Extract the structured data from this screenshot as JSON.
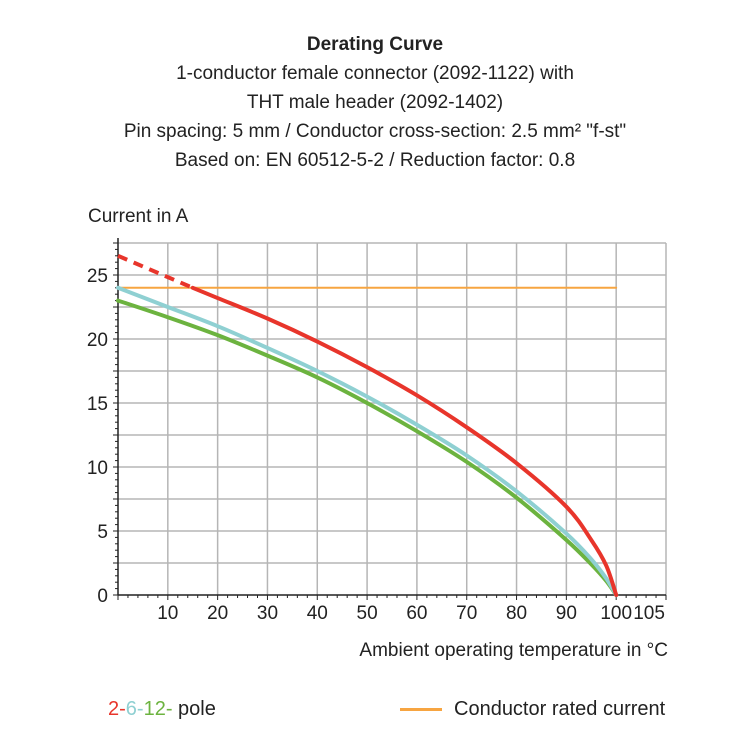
{
  "chart_data": {
    "type": "line",
    "title": "Derating Curve",
    "subtitle": [
      "1-conductor female connector (2092-1122) with",
      "THT male header (2092-1402)",
      "Pin spacing: 5 mm / Conductor cross-section: 2.5 mm² \"f-st\"",
      "Based on: EN 60512-5-2 / Reduction factor: 0.8"
    ],
    "ylabel": "Current in A",
    "xlabel": "Ambient operating temperature in °C",
    "xlim": [
      0,
      110
    ],
    "ylim": [
      0,
      27.5
    ],
    "xticks": [
      10,
      20,
      30,
      40,
      50,
      60,
      70,
      80,
      90,
      100,
      105
    ],
    "yticks": [
      0,
      5,
      10,
      15,
      20,
      25
    ],
    "grid": true,
    "series": [
      {
        "key": "2-pole",
        "color": "#e8352b",
        "dashed_segment": {
          "x": [
            0,
            15
          ],
          "y": [
            26.5,
            24.0
          ]
        },
        "x": [
          15,
          20,
          30,
          40,
          50,
          60,
          70,
          80,
          90,
          95,
          98,
          100
        ],
        "y": [
          24.0,
          23.2,
          21.6,
          19.8,
          17.8,
          15.6,
          13.1,
          10.3,
          6.9,
          4.3,
          2.3,
          0
        ]
      },
      {
        "key": "6-pole",
        "color": "#8fd0d2",
        "x": [
          0,
          10,
          20,
          30,
          40,
          50,
          60,
          70,
          80,
          90,
          95,
          98,
          100
        ],
        "y": [
          24.0,
          22.5,
          21.0,
          19.3,
          17.5,
          15.5,
          13.3,
          10.9,
          8.1,
          4.8,
          2.8,
          1.3,
          0
        ]
      },
      {
        "key": "12-pole",
        "color": "#6cb33f",
        "x": [
          0,
          10,
          20,
          30,
          40,
          50,
          60,
          70,
          80,
          90,
          95,
          98,
          100
        ],
        "y": [
          23.0,
          21.7,
          20.3,
          18.7,
          17.0,
          15.0,
          12.8,
          10.4,
          7.6,
          4.3,
          2.4,
          1.1,
          0
        ]
      },
      {
        "key": "Conductor rated current",
        "color": "#f7a541",
        "x": [
          0,
          100
        ],
        "y": [
          24,
          24
        ]
      }
    ],
    "legend": {
      "pole_parts": [
        {
          "text": "2-",
          "color": "#e8352b"
        },
        {
          "text": "6-",
          "color": "#8fd0d2"
        },
        {
          "text": "12-",
          "color": "#6cb33f"
        },
        {
          "text": " pole",
          "color": "#222222"
        }
      ],
      "rated": "Conductor rated current",
      "placement": "bottom"
    }
  }
}
